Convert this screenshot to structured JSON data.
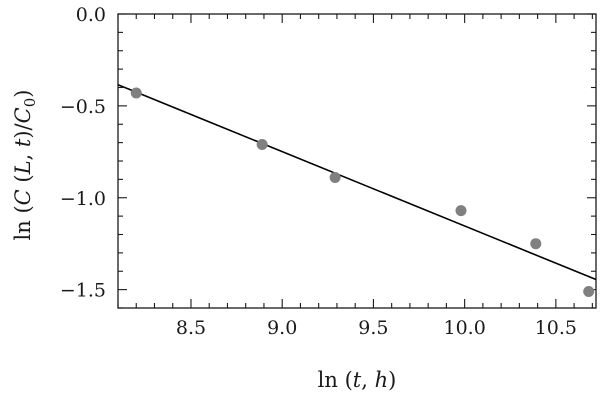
{
  "chart_data": {
    "type": "scatter",
    "title": "",
    "xlabel": "ln (t, h)",
    "ylabel": "ln (C (L, t)/C0)",
    "xlim": [
      8.1,
      10.72
    ],
    "ylim": [
      -1.6,
      0.0
    ],
    "x_ticks": [
      8.5,
      9.0,
      9.5,
      10.0,
      10.5
    ],
    "x_tick_labels": [
      "8.5",
      "9.0",
      "9.5",
      "10.0",
      "10.5"
    ],
    "y_ticks": [
      0.0,
      -0.5,
      -1.0,
      -1.5
    ],
    "y_tick_labels": [
      "0.0",
      "−0.5",
      "−1.0",
      "−1.5"
    ],
    "grid": false,
    "legend": "none",
    "series": [
      {
        "points": [
          {
            "x": 8.2,
            "y": -0.43
          },
          {
            "x": 8.89,
            "y": -0.71
          },
          {
            "x": 9.29,
            "y": -0.89
          },
          {
            "x": 9.98,
            "y": -1.07
          },
          {
            "x": 10.39,
            "y": -1.25
          },
          {
            "x": 10.68,
            "y": -1.51
          }
        ],
        "color": "#808080"
      }
    ],
    "fit_line": {
      "x": [
        8.1,
        10.72
      ],
      "y": [
        -0.385,
        -1.445
      ],
      "color": "#000000"
    }
  }
}
